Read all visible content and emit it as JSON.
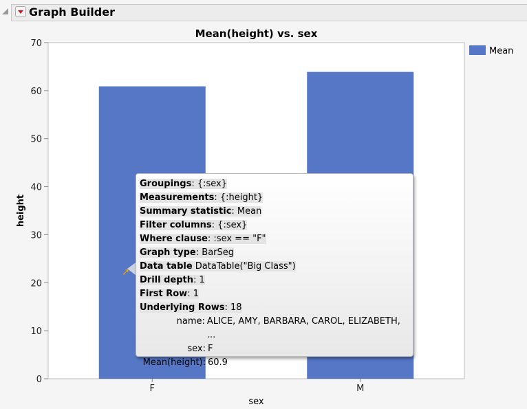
{
  "window": {
    "title": "Graph Builder"
  },
  "chart_data": {
    "type": "bar",
    "title": "Mean(height) vs. sex",
    "xlabel": "sex",
    "ylabel": "height",
    "categories": [
      "F",
      "M"
    ],
    "series": [
      {
        "name": "Mean",
        "values": [
          60.9,
          63.9
        ]
      }
    ],
    "ylim": [
      0,
      70
    ],
    "yticks": [
      0,
      10,
      20,
      30,
      40,
      50,
      60,
      70
    ],
    "grid": false,
    "legend": "right",
    "color": "#5677c5"
  },
  "tooltip": {
    "lines": [
      {
        "key": "Groupings",
        "sep": ": ",
        "value": "{:sex}"
      },
      {
        "key": "Measurements",
        "sep": ": ",
        "value": "{:height}"
      },
      {
        "key": "Summary statistic",
        "sep": ": ",
        "value": "Mean"
      },
      {
        "key": "Filter columns",
        "sep": ": ",
        "value": "{:sex}"
      },
      {
        "key": "Where clause",
        "sep": ": ",
        "value": ":sex == \"F\""
      },
      {
        "key": "Graph type",
        "sep": ": ",
        "value": "BarSeg"
      },
      {
        "key": "Data table",
        "sep": " ",
        "value": "DataTable(\"Big Class\")"
      },
      {
        "key": "Drill depth",
        "sep": ": ",
        "value": "1"
      },
      {
        "key": "First Row",
        "sep": ": ",
        "value": "1"
      },
      {
        "key": "Underlying Rows",
        "sep": ": ",
        "value": "18"
      }
    ],
    "fields": [
      {
        "key": "name:",
        "value": "ALICE, AMY, BARBARA, CAROL, ELIZABETH, ..."
      },
      {
        "key": "sex:",
        "value": "F"
      },
      {
        "key": "Mean(height):",
        "value": "60.9"
      }
    ]
  }
}
